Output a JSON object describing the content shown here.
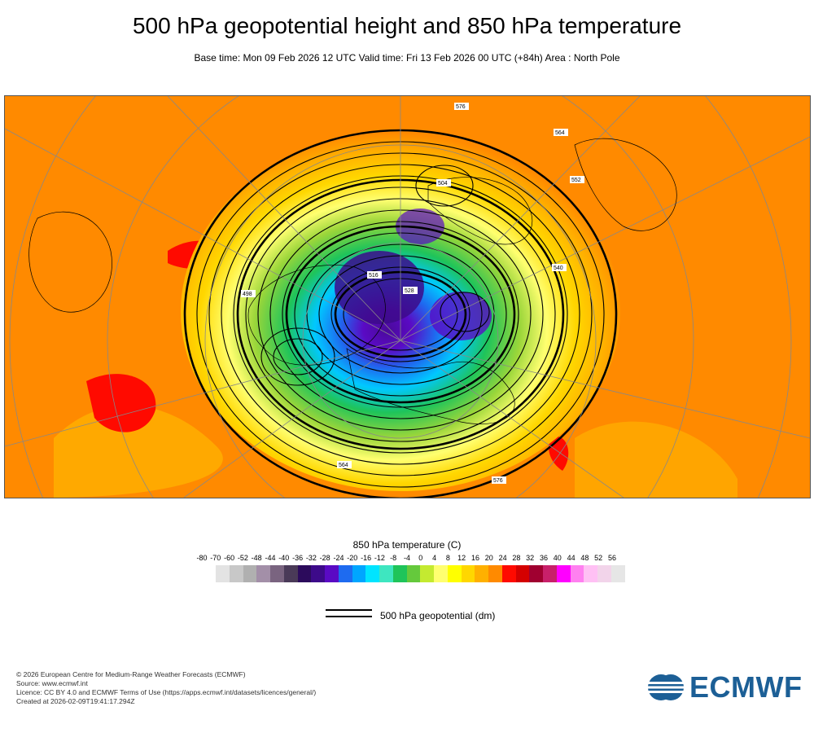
{
  "title": "500 hPa geopotential height and 850 hPa temperature",
  "subtitle": "Base time: Mon 09 Feb 2026 12 UTC Valid time: Fri 13 Feb 2026 00 UTC (+84h) Area : North Pole",
  "map": {
    "area": "North Pole",
    "contour_labels": [
      "576",
      "564",
      "552",
      "540",
      "528",
      "516",
      "504",
      "498"
    ]
  },
  "colorbar": {
    "title": "850 hPa temperature (C)",
    "ticks": [
      "-80",
      "-70",
      "-60",
      "-52",
      "-48",
      "-44",
      "-40",
      "-36",
      "-32",
      "-28",
      "-24",
      "-20",
      "-16",
      "-12",
      "-8",
      "-4",
      "0",
      "4",
      "8",
      "12",
      "16",
      "20",
      "24",
      "28",
      "32",
      "36",
      "40",
      "44",
      "48",
      "52",
      "56"
    ],
    "colors": [
      "#e3e3e3",
      "#c8c8c8",
      "#b0b0b0",
      "#a38fa8",
      "#7a6480",
      "#4a3a58",
      "#2c0b5c",
      "#3d0a8a",
      "#5a0ac4",
      "#1e6bf0",
      "#00a6ff",
      "#00e4ff",
      "#3ee6c0",
      "#1fc45a",
      "#65c93c",
      "#c4ea30",
      "#ffff70",
      "#ffff00",
      "#ffd700",
      "#ffb000",
      "#ff8a00",
      "#ff0a00",
      "#d40000",
      "#a00030",
      "#c8206a",
      "#ff00ff",
      "#ff80f0",
      "#ffc0f4",
      "#f2d4ea",
      "#e6e6e6"
    ]
  },
  "legend": {
    "line_label": "500 hPa geopotential (dm)"
  },
  "footer": {
    "copyright": "© 2026 European Centre for Medium-Range Weather Forecasts (ECMWF)",
    "source": "Source: www.ecmwf.int",
    "licence": "Licence: CC BY 4.0 and ECMWF Terms of Use (https://apps.ecmwf.int/datasets/licences/general/)",
    "created": "Created at 2026-02-09T19:41:17.294Z"
  },
  "logo": {
    "text": "ECMWF",
    "color": "#1c5f96"
  }
}
